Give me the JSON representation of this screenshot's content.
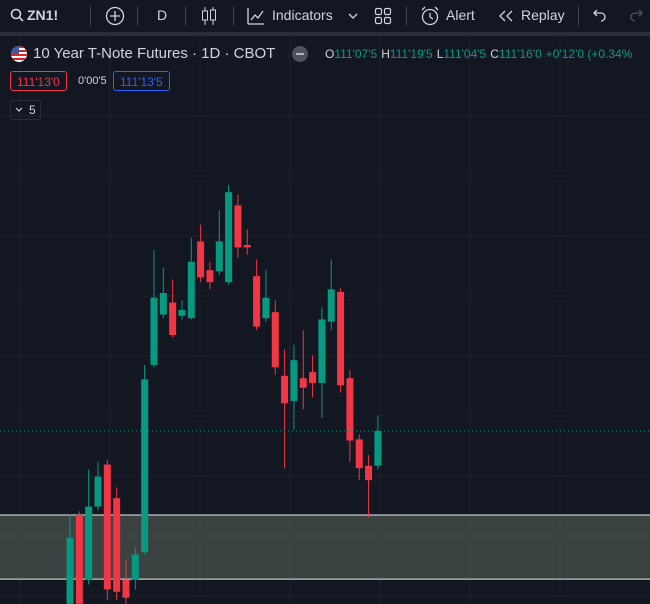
{
  "toolbar": {
    "symbol": "ZN1!",
    "interval": "D",
    "indicators": "Indicators",
    "alert": "Alert",
    "replay": "Replay"
  },
  "legend": {
    "title": "10 Year T-Note Futures · 1D · CBOT",
    "ohlc": [
      {
        "key": "O",
        "value": "111'07'5"
      },
      {
        "key": "H",
        "value": "111'19'5"
      },
      {
        "key": "L",
        "value": "111'04'5"
      },
      {
        "key": "C",
        "value": "111'16'0"
      }
    ],
    "change": "+0'12'0 (+0.34%",
    "sell": "111'13'0",
    "spread": "0'00'5",
    "buy": "111'13'5",
    "indicator_count": "5"
  },
  "chart_data": {
    "type": "candlestick",
    "up_color": "#089981",
    "down_color": "#f23645",
    "ylim": [
      110.058,
      114.775
    ],
    "zone": [
      110.265,
      110.8
    ],
    "zone_color": "#4a514e",
    "candles": [
      {
        "open": 110.06,
        "high": 110.8,
        "low": 110.06,
        "close": 110.61
      },
      {
        "open": 110.8,
        "high": 110.83,
        "low": 110.06,
        "close": 110.06
      },
      {
        "open": 110.26,
        "high": 111.18,
        "low": 110.22,
        "close": 110.87
      },
      {
        "open": 110.87,
        "high": 111.24,
        "low": 110.84,
        "close": 111.12
      },
      {
        "open": 111.22,
        "high": 111.26,
        "low": 110.09,
        "close": 110.18
      },
      {
        "open": 110.94,
        "high": 111.03,
        "low": 110.09,
        "close": 110.16
      },
      {
        "open": 110.26,
        "high": 110.43,
        "low": 110.06,
        "close": 110.11
      },
      {
        "open": 110.26,
        "high": 110.53,
        "low": 110.18,
        "close": 110.47
      },
      {
        "open": 110.49,
        "high": 112.05,
        "low": 110.47,
        "close": 111.93
      },
      {
        "open": 112.05,
        "high": 113.01,
        "low": 112.03,
        "close": 112.61
      },
      {
        "open": 112.47,
        "high": 112.86,
        "low": 112.44,
        "close": 112.65
      },
      {
        "open": 112.57,
        "high": 112.76,
        "low": 112.28,
        "close": 112.3
      },
      {
        "open": 112.46,
        "high": 112.59,
        "low": 112.43,
        "close": 112.51
      },
      {
        "open": 112.44,
        "high": 113.11,
        "low": 112.43,
        "close": 112.91
      },
      {
        "open": 113.08,
        "high": 113.22,
        "low": 112.74,
        "close": 112.78
      },
      {
        "open": 112.84,
        "high": 112.91,
        "low": 112.68,
        "close": 112.74
      },
      {
        "open": 112.83,
        "high": 113.34,
        "low": 112.8,
        "close": 113.08
      },
      {
        "open": 112.74,
        "high": 113.55,
        "low": 112.72,
        "close": 113.49
      },
      {
        "open": 113.38,
        "high": 113.47,
        "low": 112.94,
        "close": 113.03
      },
      {
        "open": 113.05,
        "high": 113.18,
        "low": 112.97,
        "close": 113.03
      },
      {
        "open": 112.79,
        "high": 112.93,
        "low": 112.34,
        "close": 112.37
      },
      {
        "open": 112.44,
        "high": 112.84,
        "low": 112.41,
        "close": 112.61
      },
      {
        "open": 112.49,
        "high": 112.59,
        "low": 111.97,
        "close": 112.03
      },
      {
        "open": 111.96,
        "high": 112.18,
        "low": 111.19,
        "close": 111.73
      },
      {
        "open": 111.75,
        "high": 112.22,
        "low": 111.51,
        "close": 112.09
      },
      {
        "open": 111.94,
        "high": 112.34,
        "low": 111.68,
        "close": 111.86
      },
      {
        "open": 111.99,
        "high": 112.13,
        "low": 111.78,
        "close": 111.9
      },
      {
        "open": 111.9,
        "high": 112.53,
        "low": 111.61,
        "close": 112.43
      },
      {
        "open": 112.41,
        "high": 112.93,
        "low": 112.34,
        "close": 112.68
      },
      {
        "open": 112.66,
        "high": 112.69,
        "low": 111.82,
        "close": 111.88
      },
      {
        "open": 111.94,
        "high": 112.01,
        "low": 111.24,
        "close": 111.42
      },
      {
        "open": 111.43,
        "high": 111.47,
        "low": 111.09,
        "close": 111.19
      },
      {
        "open": 111.21,
        "high": 111.3,
        "low": 110.78,
        "close": 111.09
      },
      {
        "open": 111.21,
        "high": 111.63,
        "low": 111.18,
        "close": 111.5
      }
    ]
  }
}
